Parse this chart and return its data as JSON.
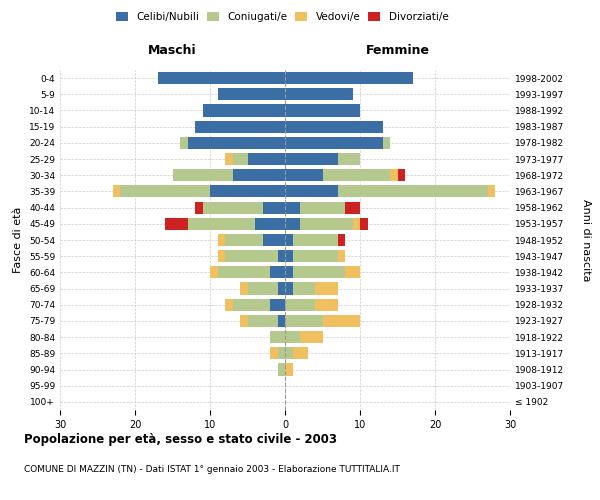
{
  "age_groups": [
    "100+",
    "95-99",
    "90-94",
    "85-89",
    "80-84",
    "75-79",
    "70-74",
    "65-69",
    "60-64",
    "55-59",
    "50-54",
    "45-49",
    "40-44",
    "35-39",
    "30-34",
    "25-29",
    "20-24",
    "15-19",
    "10-14",
    "5-9",
    "0-4"
  ],
  "birth_years": [
    "≤ 1902",
    "1903-1907",
    "1908-1912",
    "1913-1917",
    "1918-1922",
    "1923-1927",
    "1928-1932",
    "1933-1937",
    "1938-1942",
    "1943-1947",
    "1948-1952",
    "1953-1957",
    "1958-1962",
    "1963-1967",
    "1968-1972",
    "1973-1977",
    "1978-1982",
    "1983-1987",
    "1988-1992",
    "1993-1997",
    "1998-2002"
  ],
  "males": {
    "celibi": [
      0,
      0,
      0,
      0,
      0,
      1,
      2,
      1,
      2,
      1,
      3,
      4,
      3,
      10,
      7,
      5,
      13,
      12,
      11,
      9,
      17
    ],
    "coniugati": [
      0,
      0,
      1,
      1,
      2,
      4,
      5,
      4,
      7,
      7,
      5,
      9,
      8,
      12,
      8,
      2,
      1,
      0,
      0,
      0,
      0
    ],
    "vedovi": [
      0,
      0,
      0,
      1,
      0,
      1,
      1,
      1,
      1,
      1,
      1,
      0,
      0,
      1,
      0,
      1,
      0,
      0,
      0,
      0,
      0
    ],
    "divorziati": [
      0,
      0,
      0,
      0,
      0,
      0,
      0,
      0,
      0,
      0,
      0,
      3,
      1,
      0,
      0,
      0,
      0,
      0,
      0,
      0,
      0
    ]
  },
  "females": {
    "nubili": [
      0,
      0,
      0,
      0,
      0,
      0,
      0,
      1,
      1,
      1,
      1,
      2,
      2,
      7,
      5,
      7,
      13,
      13,
      10,
      9,
      17
    ],
    "coniugate": [
      0,
      0,
      0,
      1,
      2,
      5,
      4,
      3,
      7,
      6,
      6,
      7,
      6,
      20,
      9,
      3,
      1,
      0,
      0,
      0,
      0
    ],
    "vedove": [
      0,
      0,
      1,
      2,
      3,
      5,
      3,
      3,
      2,
      1,
      0,
      1,
      0,
      1,
      1,
      0,
      0,
      0,
      0,
      0,
      0
    ],
    "divorziate": [
      0,
      0,
      0,
      0,
      0,
      0,
      0,
      0,
      0,
      0,
      1,
      1,
      2,
      0,
      1,
      0,
      0,
      0,
      0,
      0,
      0
    ]
  },
  "colors": {
    "celibi": "#3a6ea5",
    "coniugati": "#b5c98e",
    "vedovi": "#f0c060",
    "divorziati": "#cc2222"
  },
  "legend_labels": [
    "Celibi/Nubili",
    "Coniugati/e",
    "Vedovi/e",
    "Divorziati/e"
  ],
  "xlim": 30,
  "title": "Popolazione per età, sesso e stato civile - 2003",
  "subtitle": "COMUNE DI MAZZIN (TN) - Dati ISTAT 1° gennaio 2003 - Elaborazione TUTTITALIA.IT",
  "ylabel_left": "Fasce di età",
  "ylabel_right": "Anni di nascita",
  "xlabel_left": "Maschi",
  "xlabel_right": "Femmine"
}
